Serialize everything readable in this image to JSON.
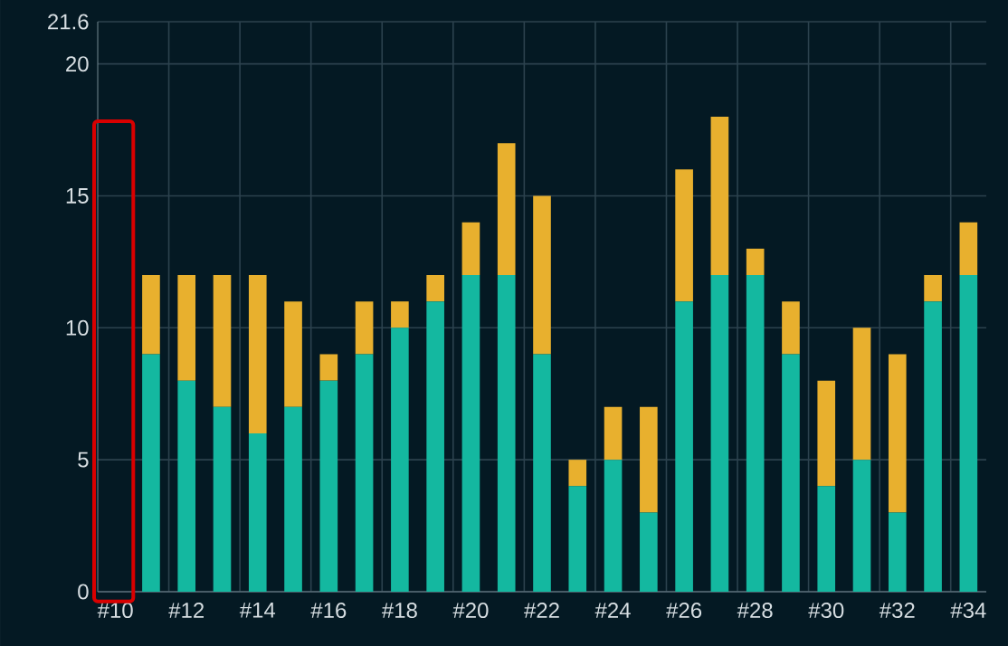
{
  "chart_data": {
    "type": "bar",
    "stacked": true,
    "grid": true,
    "categories": [
      "#10",
      null,
      "#12",
      null,
      "#14",
      null,
      "#16",
      null,
      "#18",
      null,
      "#20",
      null,
      "#22",
      null,
      "#24",
      null,
      "#26",
      null,
      "#28",
      null,
      "#30",
      null,
      "#32",
      null,
      "#34"
    ],
    "series": [
      {
        "color": "#14b8a0",
        "values": [
          null,
          9,
          8,
          7,
          6,
          7,
          8,
          9,
          10,
          11,
          12,
          12,
          9,
          4,
          5,
          3,
          11,
          12,
          12,
          9,
          4,
          5,
          3,
          11,
          12
        ]
      },
      {
        "color": "#e8b02e",
        "values": [
          null,
          3,
          4,
          5,
          6,
          4,
          1,
          2,
          1,
          1,
          2,
          5,
          6,
          1,
          2,
          4,
          5,
          6,
          1,
          2,
          4,
          5,
          6,
          1,
          2
        ]
      }
    ],
    "ylim": [
      0,
      21.6
    ],
    "yticks": [
      0,
      5,
      10,
      15,
      20,
      21.6
    ]
  }
}
